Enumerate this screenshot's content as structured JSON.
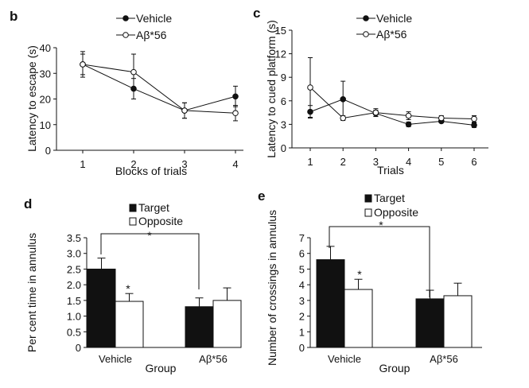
{
  "chart_data": [
    {
      "panel": "b",
      "type": "line",
      "xlabel": "Blocks of trials",
      "ylabel": "Latency to escape (s)",
      "categories": [
        "1",
        "2",
        "3",
        "4"
      ],
      "ylim": [
        0,
        40
      ],
      "yticks": [
        "0",
        "10",
        "20",
        "30",
        "40"
      ],
      "legend_position": "top",
      "series": [
        {
          "name": "Vehicle",
          "marker": "filled",
          "values": [
            33.5,
            24,
            15.5,
            21
          ],
          "errors": [
            5,
            4,
            3,
            4
          ]
        },
        {
          "name": "Aβ*56",
          "marker": "open",
          "values": [
            33.5,
            30.5,
            15.5,
            14.5
          ],
          "errors": [
            4,
            7,
            3,
            3
          ]
        }
      ]
    },
    {
      "panel": "c",
      "type": "line",
      "xlabel": "Trials",
      "ylabel": "Latency to cued platform (s)",
      "categories": [
        "1",
        "2",
        "3",
        "4",
        "5",
        "6"
      ],
      "ylim": [
        0,
        15
      ],
      "yticks": [
        "0",
        "3",
        "6",
        "9",
        "12",
        "15"
      ],
      "legend_position": "top",
      "series": [
        {
          "name": "Vehicle",
          "marker": "filled",
          "values": [
            4.6,
            6.2,
            4.4,
            3.0,
            3.4,
            2.9
          ],
          "errors": [
            0.8,
            2.3,
            0.4,
            0.3,
            0.2,
            0.3
          ]
        },
        {
          "name": "Aβ*56",
          "marker": "open",
          "values": [
            7.7,
            3.8,
            4.5,
            4.1,
            3.8,
            3.7
          ],
          "errors": [
            3.8,
            0.3,
            0.5,
            0.5,
            0.3,
            0.4
          ]
        }
      ]
    },
    {
      "panel": "d",
      "type": "bar",
      "xlabel": "Group",
      "ylabel": "Per cent time in annulus",
      "categories": [
        "Vehicle",
        "Aβ*56"
      ],
      "ylim": [
        0,
        3.5
      ],
      "yticks": [
        "0",
        "0.5",
        "1.0",
        "1.5",
        "2.0",
        "2.5",
        "3.0",
        "3.5"
      ],
      "legend_position": "top",
      "series": [
        {
          "name": "Target",
          "fill": "black",
          "values": [
            2.5,
            1.3
          ],
          "errors": [
            0.35,
            0.28
          ]
        },
        {
          "name": "Opposite",
          "fill": "white",
          "values": [
            1.47,
            1.5
          ],
          "errors": [
            0.25,
            0.4
          ]
        }
      ],
      "annotations": {
        "within_star": "*",
        "between_star": "*"
      }
    },
    {
      "panel": "e",
      "type": "bar",
      "xlabel": "Group",
      "ylabel": "Number of crossings in annulus",
      "categories": [
        "Vehicle",
        "Aβ*56"
      ],
      "ylim": [
        0,
        7
      ],
      "yticks": [
        "0",
        "1",
        "2",
        "3",
        "4",
        "5",
        "6",
        "7"
      ],
      "legend_position": "top",
      "series": [
        {
          "name": "Target",
          "fill": "black",
          "values": [
            5.6,
            3.1
          ],
          "errors": [
            0.85,
            0.55
          ]
        },
        {
          "name": "Opposite",
          "fill": "white",
          "values": [
            3.7,
            3.3
          ],
          "errors": [
            0.65,
            0.8
          ]
        }
      ],
      "annotations": {
        "within_star": "*",
        "between_star": "*"
      }
    }
  ]
}
